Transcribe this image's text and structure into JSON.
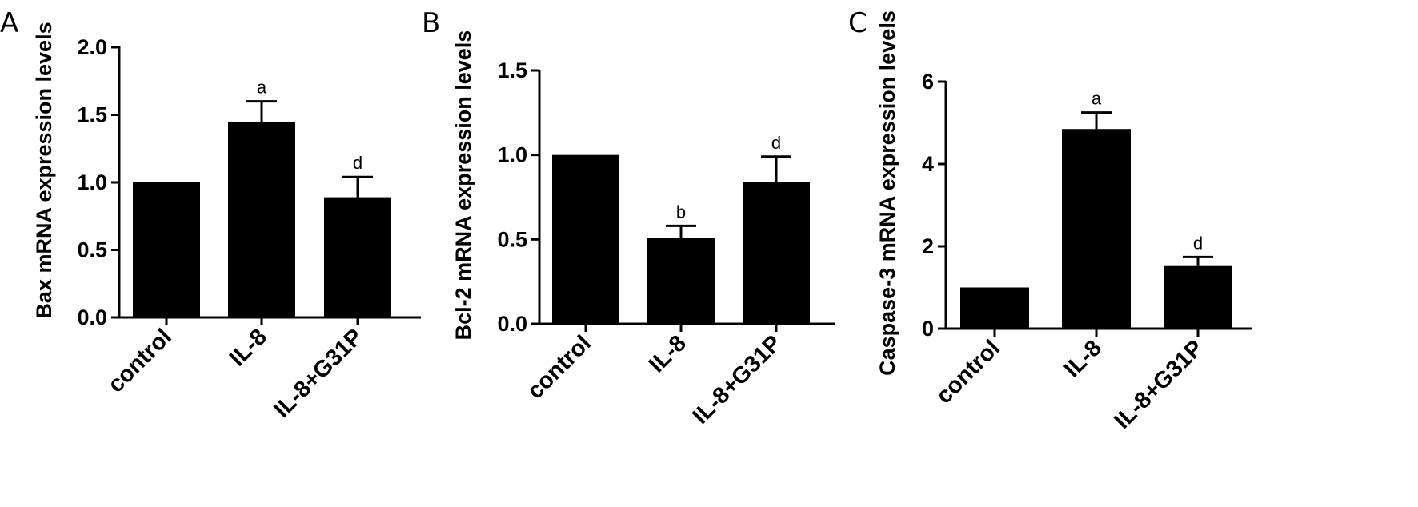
{
  "chart_data": [
    {
      "panel": "A",
      "type": "bar",
      "ylabel": "Bax mRNA expression levels",
      "categories": [
        "control",
        "IL-8",
        "IL-8+G31P"
      ],
      "values": [
        1.0,
        1.45,
        0.89
      ],
      "errors": [
        0,
        0.15,
        0.15
      ],
      "significance": [
        "",
        "a",
        "d"
      ],
      "ylim": [
        0,
        2.0
      ],
      "yticks": [
        "0.0",
        "0.5",
        "1.0",
        "1.5",
        "2.0"
      ],
      "color": "#000000"
    },
    {
      "panel": "B",
      "type": "bar",
      "ylabel": "Bcl-2 mRNA expression levels",
      "categories": [
        "control",
        "IL-8",
        "IL-8+G31P"
      ],
      "values": [
        1.0,
        0.51,
        0.84
      ],
      "errors": [
        0,
        0.07,
        0.15
      ],
      "significance": [
        "",
        "b",
        "d"
      ],
      "ylim": [
        0,
        1.5
      ],
      "yticks": [
        "0.0",
        "0.5",
        "1.0",
        "1.5"
      ],
      "color": "#000000"
    },
    {
      "panel": "C",
      "type": "bar",
      "ylabel": "Caspase-3 mRNA expression levels",
      "categories": [
        "control",
        "IL-8",
        "IL-8+G31P"
      ],
      "values": [
        1.0,
        4.85,
        1.52
      ],
      "errors": [
        0,
        0.4,
        0.22
      ],
      "significance": [
        "",
        "a",
        "d"
      ],
      "ylim": [
        0,
        6
      ],
      "yticks": [
        "0",
        "2",
        "4",
        "6"
      ],
      "color": "#000000"
    }
  ]
}
